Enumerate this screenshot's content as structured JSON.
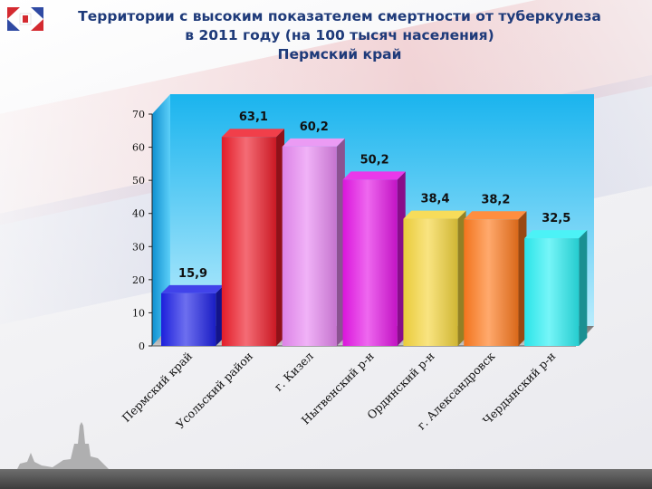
{
  "title": {
    "line1": "Территории с высоким показателем смертности от туберкулеза",
    "line2": "в 2011 году (на 100 тысяч населения)",
    "line3": "Пермский край"
  },
  "chart_data": {
    "type": "bar",
    "title": "Территории с высоким показателем смертности от туберкулеза в 2011 году (на 100 тысяч населения) Пермский край",
    "categories": [
      "Пермский край",
      "Усольский район",
      "г. Кизел",
      "Нытвенский р-н",
      "Ординский р-н",
      "г. Александровск",
      "Чердынский р-н"
    ],
    "values": [
      15.9,
      63.1,
      60.2,
      50.2,
      38.4,
      38.2,
      32.5
    ],
    "value_labels": [
      "15,9",
      "63,1",
      "60,2",
      "50,2",
      "38,4",
      "38,2",
      "32,5"
    ],
    "colors": [
      "#1f22e6",
      "#ee1d2a",
      "#e889f2",
      "#e516e6",
      "#f5d63d",
      "#ff7a1e",
      "#2cf0f4"
    ],
    "yticks": [
      "0",
      "10",
      "20",
      "30",
      "40",
      "50",
      "60",
      "70"
    ],
    "ylim": [
      0,
      70
    ],
    "grid": false,
    "style": "3d-bar"
  }
}
